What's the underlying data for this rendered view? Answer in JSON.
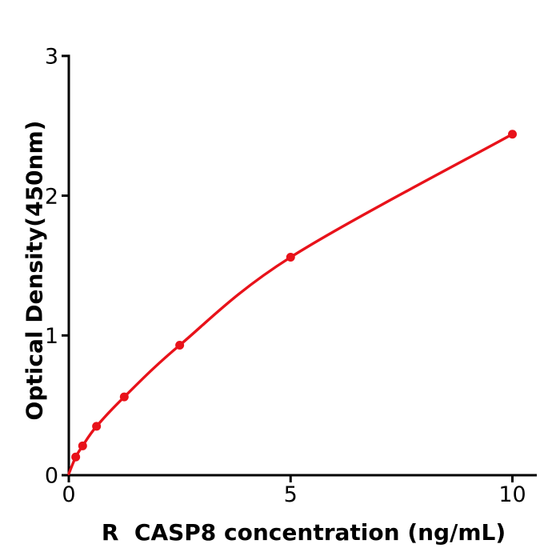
{
  "chart_data": {
    "type": "scatter",
    "subtype": "scatter-with-fitted-line",
    "title": "",
    "xlabel": "R  CASP8 concentration (ng/mL)",
    "ylabel": "Optical Density(450nm)",
    "x": [
      0.156,
      0.312,
      0.625,
      1.25,
      2.5,
      5,
      10
    ],
    "y": [
      0.13,
      0.21,
      0.35,
      0.56,
      0.93,
      1.56,
      2.44
    ],
    "curve_start": {
      "x": 0,
      "y": 0.01
    },
    "xticks": [
      0,
      5,
      10
    ],
    "yticks": [
      0,
      1,
      2,
      3
    ],
    "xlim": [
      0,
      10.55
    ],
    "ylim": [
      0,
      3
    ],
    "grid": false,
    "legend_position": "none",
    "colors": {
      "line": "#e8121a",
      "marker": "#e8121a",
      "axis": "#000000",
      "text": "#000000",
      "background": "#ffffff"
    }
  }
}
